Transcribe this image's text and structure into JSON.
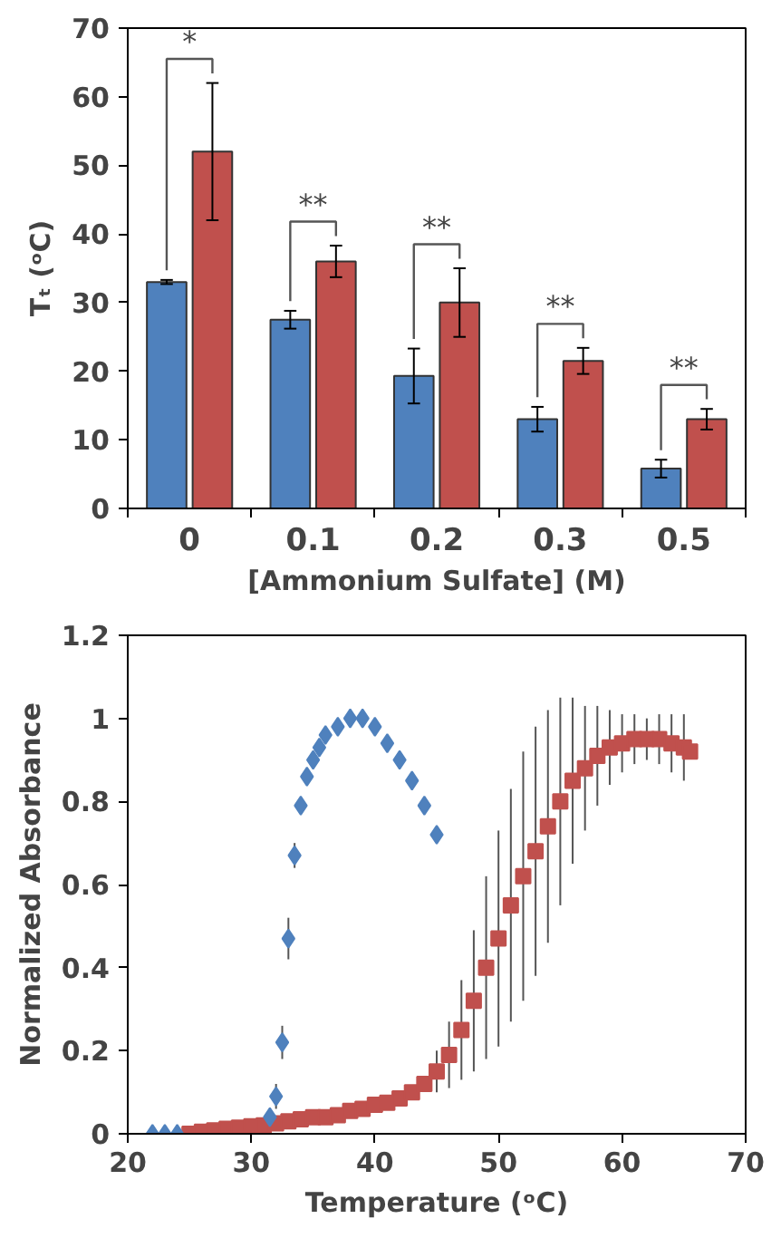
{
  "chart_data": [
    {
      "type": "bar",
      "xlabel": "[Ammonium Sulfate] (M)",
      "ylabel": "Tₜ (ᵒC)",
      "categories": [
        "0",
        "0.1",
        "0.2",
        "0.3",
        "0.5"
      ],
      "series": [
        {
          "color": "#4f81bd",
          "values": [
            33,
            27.5,
            19.3,
            13,
            5.8
          ],
          "errors": [
            0.3,
            1.3,
            4,
            1.8,
            1.3
          ]
        },
        {
          "color": "#c0504d",
          "values": [
            52,
            36,
            30,
            21.5,
            13
          ],
          "errors": [
            10,
            2.3,
            5,
            1.9,
            1.5
          ]
        }
      ],
      "ylim": [
        0,
        70
      ],
      "yticks": [
        0,
        10,
        20,
        30,
        40,
        50,
        60,
        70
      ],
      "annotations": [
        "*",
        "**",
        "**",
        "**",
        "**"
      ]
    },
    {
      "type": "scatter",
      "xlabel": "Temperature (ᵒC)",
      "ylabel": "Normalized Absorbance",
      "xlim": [
        20,
        70
      ],
      "xticks": [
        20,
        30,
        40,
        50,
        60,
        70
      ],
      "ylim": [
        0,
        1.2
      ],
      "yticks": [
        0,
        0.2,
        0.4,
        0.6,
        0.8,
        1,
        1.2
      ],
      "series": [
        {
          "color": "#4f81bd",
          "marker": "diamond",
          "x": [
            22,
            23,
            24,
            31.5,
            32,
            32.5,
            33,
            33.5,
            34,
            34.5,
            35,
            35.5,
            36,
            37,
            38,
            39,
            40,
            41,
            42,
            43,
            44,
            45
          ],
          "values": [
            0,
            0,
            0,
            0.04,
            0.09,
            0.22,
            0.47,
            0.67,
            0.79,
            0.86,
            0.9,
            0.93,
            0.96,
            0.98,
            1.0,
            1.0,
            0.98,
            0.94,
            0.9,
            0.85,
            0.79,
            0.72
          ],
          "errors": [
            null,
            null,
            null,
            null,
            0.03,
            0.04,
            0.05,
            0.03,
            null,
            null,
            null,
            null,
            null,
            null,
            null,
            null,
            null,
            null,
            null,
            null,
            null,
            null
          ]
        },
        {
          "color": "#c0504d",
          "marker": "square",
          "x": [
            25,
            26,
            27,
            28,
            29,
            30,
            31,
            32,
            33,
            34,
            35,
            36,
            37,
            38,
            39,
            40,
            41,
            42,
            43,
            44,
            45,
            46,
            47,
            48,
            49,
            50,
            51,
            52,
            53,
            54,
            55,
            56,
            57,
            58,
            59,
            60,
            61,
            62,
            63,
            64,
            65,
            65.5
          ],
          "values": [
            0,
            0.005,
            0.008,
            0.012,
            0.015,
            0.018,
            0.02,
            0.025,
            0.03,
            0.035,
            0.04,
            0.04,
            0.045,
            0.055,
            0.06,
            0.07,
            0.075,
            0.085,
            0.1,
            0.12,
            0.15,
            0.19,
            0.25,
            0.32,
            0.4,
            0.47,
            0.55,
            0.62,
            0.68,
            0.74,
            0.8,
            0.85,
            0.88,
            0.91,
            0.93,
            0.94,
            0.95,
            0.95,
            0.95,
            0.94,
            0.93,
            0.92
          ],
          "errors": [
            null,
            null,
            null,
            null,
            null,
            null,
            null,
            null,
            null,
            null,
            null,
            null,
            null,
            null,
            null,
            null,
            null,
            null,
            null,
            null,
            0.05,
            0.08,
            0.12,
            0.17,
            0.22,
            0.26,
            0.28,
            0.3,
            0.3,
            0.28,
            0.25,
            0.2,
            0.15,
            0.12,
            0.09,
            0.07,
            0.06,
            0.05,
            0.06,
            0.07,
            0.08,
            null
          ]
        }
      ]
    }
  ]
}
